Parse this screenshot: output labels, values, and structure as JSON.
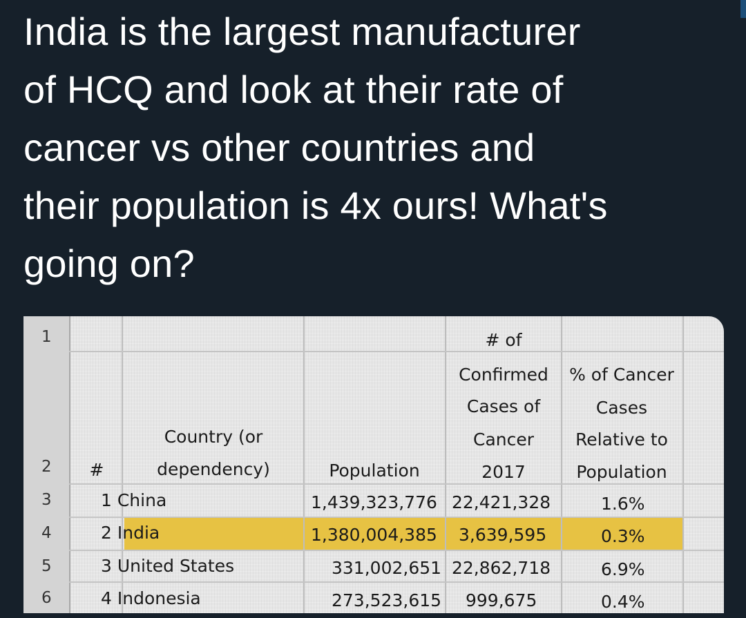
{
  "tweet": {
    "lines": [
      "India is the largest manufacturer",
      "of HCQ and look at their rate of",
      "cancer vs other countries and",
      "their population is 4x ours! What's",
      "going on?"
    ]
  },
  "spreadsheet": {
    "row_numbers": [
      "1",
      "2",
      "3",
      "4",
      "5",
      "6"
    ],
    "headers": {
      "rank": "#",
      "country_line1": "Country (or",
      "country_line2": "dependency)",
      "population": "Population",
      "cases_line1": "# of",
      "cases_line2": "Confirmed",
      "cases_line3": "Cases of",
      "cases_line4": "Cancer",
      "cases_line5": "2017",
      "pct_line1": "% of Cancer",
      "pct_line2": "Cases",
      "pct_line3": "Relative to",
      "pct_line4": "Population"
    },
    "rows": [
      {
        "rank_country": "1 China",
        "population": "1,439,323,776",
        "cases": "22,421,328",
        "pct": "1.6%"
      },
      {
        "rank_country": "2 India",
        "population": "1,380,004,385",
        "cases": "3,639,595",
        "pct": "0.3%"
      },
      {
        "rank_country": "3 United States",
        "population": "331,002,651",
        "cases": "22,862,718",
        "pct": "6.9%"
      },
      {
        "rank_country": "4 Indonesia",
        "population": "273,523,615",
        "cases": "999,675",
        "pct": "0.4%"
      }
    ],
    "highlight_color": "#e7c243"
  }
}
